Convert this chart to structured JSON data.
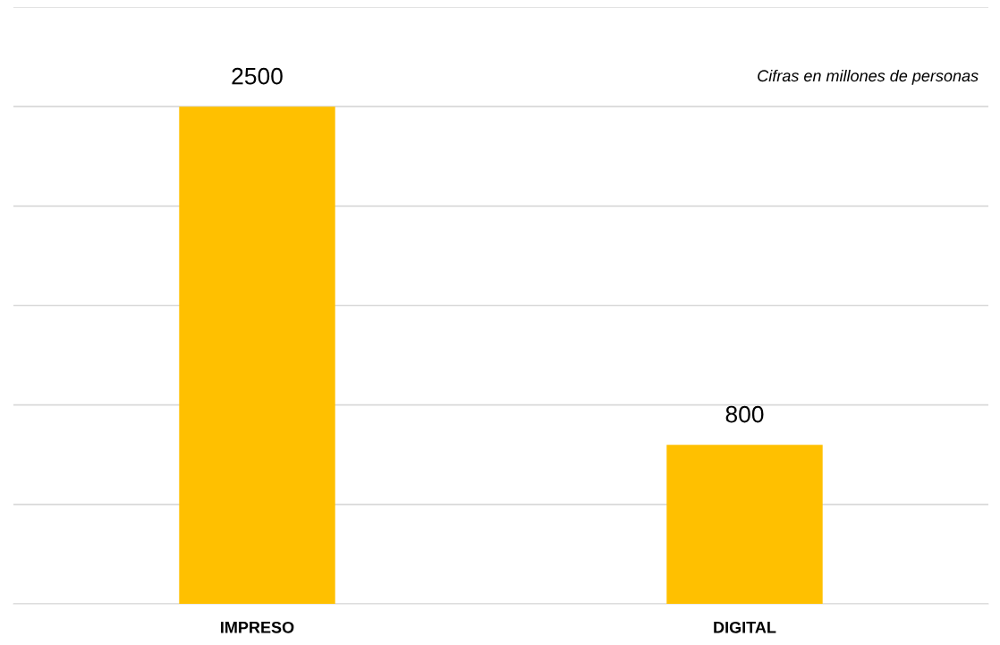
{
  "chart_data": {
    "type": "bar",
    "categories": [
      "IMPRESO",
      "DIGITAL"
    ],
    "values": [
      2500,
      800
    ],
    "color": "#ffc000",
    "data_labels": true,
    "ylim": [
      0,
      3000
    ],
    "yticks": [
      {
        "value": 0,
        "label": null
      },
      {
        "value": 500,
        "label": null
      },
      {
        "value": 1000,
        "label": null
      },
      {
        "value": 1500,
        "label": null
      },
      {
        "value": 2000,
        "label": null
      },
      {
        "value": 2500,
        "label": null
      },
      {
        "value": 3000,
        "label": null
      }
    ],
    "grid": "y",
    "tick_labels": "x",
    "annotations": [
      "Cifras en millones de personas"
    ]
  }
}
